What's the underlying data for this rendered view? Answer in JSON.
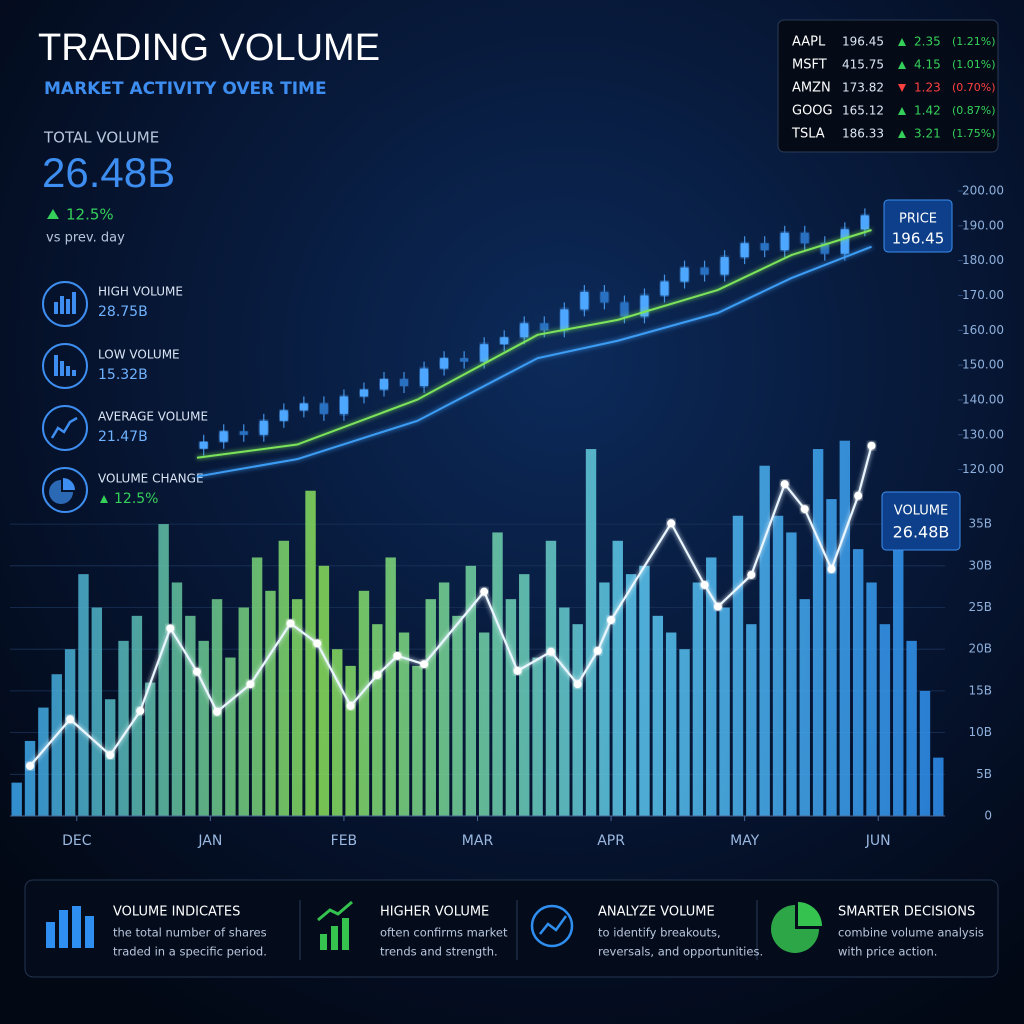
{
  "header": {
    "title": "TRADING VOLUME",
    "subtitle": "MARKET ACTIVITY OVER TIME"
  },
  "total": {
    "label": "TOTAL VOLUME",
    "value": "26.48B",
    "change": "12.5%",
    "note": "vs prev. day"
  },
  "stats": [
    {
      "label": "HIGH VOLUME",
      "value": "28.75B"
    },
    {
      "label": "LOW VOLUME",
      "value": "15.32B"
    },
    {
      "label": "AVERAGE VOLUME",
      "value": "21.47B"
    },
    {
      "label": "VOLUME CHANGE",
      "value": "12.5%",
      "direction": "up"
    }
  ],
  "tickers": [
    {
      "symbol": "AAPL",
      "price": "196.45",
      "change": "2.35",
      "pct": "(1.21%)",
      "direction": "up"
    },
    {
      "symbol": "MSFT",
      "price": "415.75",
      "change": "4.15",
      "pct": "(1.01%)",
      "direction": "up"
    },
    {
      "symbol": "AMZN",
      "price": "173.82",
      "change": "1.23",
      "pct": "(0.70%)",
      "direction": "down"
    },
    {
      "symbol": "GOOG",
      "price": "165.12",
      "change": "1.42",
      "pct": "(0.87%)",
      "direction": "up"
    },
    {
      "symbol": "TSLA",
      "price": "186.33",
      "change": "3.21",
      "pct": "(1.75%)",
      "direction": "up"
    }
  ],
  "footer": [
    {
      "title": "VOLUME INDICATES",
      "lines": [
        "the total number of shares",
        "traded in a specific period."
      ]
    },
    {
      "title": "HIGHER VOLUME",
      "lines": [
        "often confirms market",
        "trends and strength."
      ]
    },
    {
      "title": "ANALYZE VOLUME",
      "lines": [
        "to identify breakouts,",
        "reversals, and opportunities."
      ]
    },
    {
      "title": "SMARTER DECISIONS",
      "lines": [
        "combine volume analysis",
        "with price action."
      ]
    }
  ],
  "chart_data": [
    {
      "type": "candlestick",
      "color": "#4da6ff",
      "xlim": [
        0,
        140
      ],
      "ylim": [
        115,
        200
      ],
      "yticks": [
        {
          "value": 120,
          "label": "120.00"
        },
        {
          "value": 130,
          "label": "130.00"
        },
        {
          "value": 140,
          "label": "140.00"
        },
        {
          "value": 150,
          "label": "150.00"
        },
        {
          "value": 160,
          "label": "160.00"
        },
        {
          "value": 170,
          "label": "170.00"
        },
        {
          "value": 180,
          "label": "180.00"
        },
        {
          "value": 190,
          "label": "190.00"
        },
        {
          "value": 200,
          "label": "200.00"
        }
      ],
      "x": [
        29,
        32,
        35,
        38,
        41,
        44,
        47,
        50,
        53,
        56,
        59,
        62,
        65,
        68,
        71,
        74,
        77,
        80,
        83,
        86,
        89,
        92,
        95,
        98,
        101,
        104,
        107,
        110,
        113,
        116,
        119,
        122,
        125,
        128
      ],
      "open": [
        126,
        128,
        131,
        130,
        134,
        137,
        139,
        136,
        141,
        143,
        146,
        144,
        149,
        152,
        151,
        156,
        158,
        162,
        160,
        166,
        171,
        168,
        164,
        170,
        174,
        178,
        176,
        181,
        185,
        183,
        188,
        185,
        182,
        189
      ],
      "high": [
        130,
        133,
        133,
        136,
        139,
        141,
        141,
        143,
        145,
        148,
        148,
        151,
        154,
        154,
        158,
        160,
        164,
        164,
        168,
        173,
        173,
        170,
        172,
        176,
        180,
        180,
        183,
        187,
        187,
        190,
        190,
        187,
        191,
        195
      ],
      "low": [
        124,
        126,
        128,
        128,
        132,
        135,
        134,
        134,
        139,
        141,
        142,
        142,
        147,
        149,
        149,
        154,
        156,
        158,
        158,
        164,
        166,
        162,
        162,
        168,
        172,
        174,
        174,
        179,
        181,
        181,
        183,
        180,
        180,
        187
      ],
      "close": [
        128,
        131,
        130,
        134,
        137,
        139,
        136,
        141,
        143,
        146,
        144,
        149,
        152,
        151,
        156,
        158,
        162,
        160,
        166,
        171,
        168,
        164,
        170,
        174,
        178,
        176,
        181,
        185,
        183,
        188,
        185,
        182,
        189,
        193
      ],
      "series": [
        {
          "color": "#7be35a",
          "x": [
            28,
            43,
            61,
            79,
            91,
            106,
            117,
            129
          ],
          "values": [
            123.4,
            127.2,
            140.1,
            158.7,
            163,
            171.6,
            181.6,
            188.8
          ]
        },
        {
          "color": "#3d9df5",
          "x": [
            28,
            43,
            61,
            79,
            91,
            106,
            117,
            129
          ],
          "values": [
            118,
            123,
            134,
            152,
            157,
            165,
            175,
            184
          ]
        }
      ],
      "annotation": {
        "label": "PRICE",
        "value": "196.45"
      }
    },
    {
      "type": "bar",
      "colors": [
        "#3aa4f2",
        "#8ae05a",
        "#5cc8f0",
        "#2e8ff0"
      ],
      "grid": true,
      "xlim": [
        0,
        140
      ],
      "ylim": [
        0,
        50
      ],
      "xticks": [
        {
          "value": 10,
          "label": "DEC"
        },
        {
          "value": 30,
          "label": "JAN"
        },
        {
          "value": 50,
          "label": "FEB"
        },
        {
          "value": 70,
          "label": "MAR"
        },
        {
          "value": 90,
          "label": "APR"
        },
        {
          "value": 110,
          "label": "MAY"
        },
        {
          "value": 130,
          "label": "JUN"
        }
      ],
      "yticks": [
        0,
        {
          "value": 5,
          "label": "5B"
        },
        {
          "value": 10,
          "label": "10B"
        },
        {
          "value": 15,
          "label": "15B"
        },
        {
          "value": 20,
          "label": "20B"
        },
        {
          "value": 25,
          "label": "25B"
        },
        {
          "value": 30,
          "label": "30B"
        },
        {
          "value": 35,
          "label": "35B"
        }
      ],
      "x": [
        1,
        3,
        5,
        7,
        9,
        11,
        13,
        15,
        17,
        19,
        21,
        23,
        25,
        27,
        29,
        31,
        33,
        35,
        37,
        39,
        41,
        43,
        45,
        47,
        49,
        51,
        53,
        55,
        57,
        59,
        61,
        63,
        65,
        67,
        69,
        71,
        73,
        75,
        77,
        79,
        81,
        83,
        85,
        87,
        89,
        91,
        93,
        95,
        97,
        99,
        101,
        103,
        105,
        107,
        109,
        111,
        113,
        115,
        117,
        119,
        121,
        123,
        125,
        127,
        129,
        131,
        133,
        135,
        137,
        139
      ],
      "values": [
        4,
        9,
        13,
        17,
        20,
        29,
        25,
        14,
        21,
        24,
        16,
        35,
        28,
        24,
        21,
        26,
        19,
        25,
        31,
        27,
        33,
        26,
        39,
        30,
        20,
        18,
        27,
        23,
        31,
        22,
        18,
        26,
        28,
        24,
        30,
        22,
        34,
        26,
        29,
        19,
        33,
        25,
        23,
        44,
        28,
        33,
        29,
        30,
        24,
        22,
        20,
        28,
        31,
        25,
        36,
        23,
        42,
        36,
        34,
        26,
        44,
        38,
        45,
        32,
        28,
        23,
        35,
        21,
        15,
        7
      ],
      "line": {
        "color": "#eaf6ff",
        "x": [
          3,
          9,
          15,
          19.5,
          24,
          28,
          31,
          36,
          42,
          46,
          51,
          55,
          58,
          62,
          71,
          76,
          81,
          85,
          88,
          90,
          99,
          104,
          106,
          111,
          116,
          119,
          123,
          127,
          129
        ],
        "values": [
          6,
          11.6,
          7.3,
          12.6,
          22.5,
          17.3,
          12.5,
          15.8,
          23.1,
          20.7,
          13.2,
          16.9,
          19.2,
          18.2,
          26.9,
          17.4,
          19.7,
          15.8,
          19.8,
          23.5,
          35.1,
          27.7,
          25.1,
          28.9,
          39.8,
          36.8,
          29.6,
          38.4,
          44.4
        ]
      },
      "annotation": {
        "label": "VOLUME",
        "value": "26.48B"
      }
    }
  ]
}
